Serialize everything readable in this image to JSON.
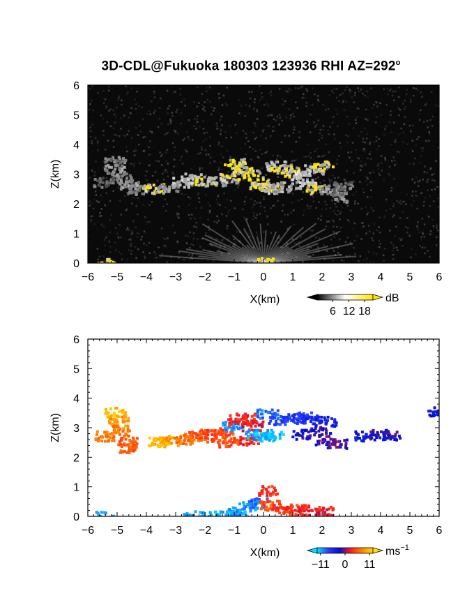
{
  "title": {
    "main": "3D-CDL@Fukuoka 180303 123936 RHI AZ=292",
    "deg": "o"
  },
  "chart_data": [
    {
      "type": "heatmap",
      "panel": "reflectivity",
      "xlabel": "X(km)",
      "ylabel": "Z(km)",
      "xlim": [
        -6,
        6
      ],
      "ylim": [
        0,
        6
      ],
      "xticks": [
        "−6",
        "−5",
        "−4",
        "−3",
        "−2",
        "−1",
        "0",
        "1",
        "2",
        "3",
        "4",
        "5",
        "6"
      ],
      "yticks": [
        "0",
        "1",
        "2",
        "3",
        "4",
        "5",
        "6"
      ],
      "background": "#0a0a0a",
      "colorbar": {
        "unit": "dB",
        "ticks": [
          "6",
          "12",
          "18"
        ],
        "range": [
          0,
          21
        ],
        "colors": [
          "#000000",
          "#ffffff",
          "#ffe600"
        ]
      },
      "features": [
        {
          "x": -5.1,
          "z": 3.45,
          "val": 9
        },
        {
          "x": -5.1,
          "z": 3.2,
          "val": 10
        },
        {
          "x": -4.9,
          "z": 2.9,
          "val": 9
        },
        {
          "x": -4.6,
          "z": 2.7,
          "val": 10
        },
        {
          "x": -4.3,
          "z": 2.5,
          "val": 8
        },
        {
          "x": -5.5,
          "z": 2.75,
          "val": 7
        },
        {
          "x": -3.8,
          "z": 2.55,
          "val": 20
        },
        {
          "x": -3.3,
          "z": 2.6,
          "val": 10
        },
        {
          "x": -2.8,
          "z": 2.75,
          "val": 12
        },
        {
          "x": -2.5,
          "z": 2.9,
          "val": 13
        },
        {
          "x": -2.0,
          "z": 2.8,
          "val": 20
        },
        {
          "x": -1.6,
          "z": 2.8,
          "val": 12
        },
        {
          "x": -1.2,
          "z": 2.9,
          "val": 20
        },
        {
          "x": -1.0,
          "z": 3.4,
          "val": 20
        },
        {
          "x": -0.7,
          "z": 3.25,
          "val": 20
        },
        {
          "x": -0.4,
          "z": 3.0,
          "val": 20
        },
        {
          "x": -0.2,
          "z": 2.7,
          "val": 20
        },
        {
          "x": 0.0,
          "z": 2.6,
          "val": 20
        },
        {
          "x": 0.3,
          "z": 2.55,
          "val": 20
        },
        {
          "x": 0.6,
          "z": 2.6,
          "val": 11
        },
        {
          "x": 0.4,
          "z": 3.3,
          "val": 12
        },
        {
          "x": 0.6,
          "z": 3.2,
          "val": 20
        },
        {
          "x": 0.9,
          "z": 3.1,
          "val": 20
        },
        {
          "x": 1.2,
          "z": 3.0,
          "val": 14
        },
        {
          "x": 1.4,
          "z": 2.7,
          "val": 13
        },
        {
          "x": 1.7,
          "z": 3.2,
          "val": 12
        },
        {
          "x": 2.0,
          "z": 3.3,
          "val": 20
        },
        {
          "x": 1.8,
          "z": 2.5,
          "val": 20
        },
        {
          "x": 2.2,
          "z": 2.5,
          "val": 10
        },
        {
          "x": 2.5,
          "z": 2.25,
          "val": 9
        },
        {
          "x": 2.7,
          "z": 2.6,
          "val": 8
        },
        {
          "x": 0.0,
          "z": 0.05,
          "val": 18
        },
        {
          "x": -5.4,
          "z": 0.02,
          "val": 20
        }
      ]
    },
    {
      "type": "heatmap",
      "panel": "doppler_velocity",
      "xlabel": "X(km)",
      "ylabel": "Z(km)",
      "xlim": [
        -6,
        6
      ],
      "ylim": [
        0,
        6
      ],
      "xticks": [
        "−6",
        "−5",
        "−4",
        "−3",
        "−2",
        "−1",
        "0",
        "1",
        "2",
        "3",
        "4",
        "5",
        "6"
      ],
      "yticks": [
        "0",
        "1",
        "2",
        "3",
        "4",
        "5",
        "6"
      ],
      "background": "#ffffff",
      "colorbar": {
        "unit": "ms",
        "unit_exp": "−1",
        "ticks": [
          "−11",
          "0",
          "11"
        ],
        "range": [
          -11,
          11
        ],
        "colors": [
          "#00e5ff",
          "#2a3cff",
          "#0010d0",
          "#ff1a1a",
          "#ff8000",
          "#ffe000"
        ]
      },
      "features": [
        {
          "x": -5.1,
          "z": 3.55,
          "val": 9
        },
        {
          "x": -5.0,
          "z": 3.25,
          "val": 8
        },
        {
          "x": -4.9,
          "z": 2.95,
          "val": 6
        },
        {
          "x": -4.7,
          "z": 2.6,
          "val": 5
        },
        {
          "x": -4.6,
          "z": 2.35,
          "val": 5
        },
        {
          "x": -5.5,
          "z": 2.75,
          "val": 6
        },
        {
          "x": -3.6,
          "z": 2.55,
          "val": 9
        },
        {
          "x": -3.2,
          "z": 2.6,
          "val": 8
        },
        {
          "x": -2.8,
          "z": 2.65,
          "val": 6
        },
        {
          "x": -2.4,
          "z": 2.75,
          "val": 5
        },
        {
          "x": -2.0,
          "z": 2.8,
          "val": 4
        },
        {
          "x": -1.7,
          "z": 2.7,
          "val": 4
        },
        {
          "x": -1.4,
          "z": 2.9,
          "val": 4
        },
        {
          "x": -1.2,
          "z": 2.55,
          "val": 4
        },
        {
          "x": -1.1,
          "z": 3.1,
          "val": -9
        },
        {
          "x": -0.9,
          "z": 3.3,
          "val": 2
        },
        {
          "x": -0.6,
          "z": 3.35,
          "val": 3
        },
        {
          "x": -0.4,
          "z": 3.1,
          "val": 2
        },
        {
          "x": -0.5,
          "z": 2.6,
          "val": 3
        },
        {
          "x": -0.3,
          "z": 2.8,
          "val": -9
        },
        {
          "x": 0.0,
          "z": 2.75,
          "val": -10
        },
        {
          "x": 0.3,
          "z": 2.8,
          "val": -10
        },
        {
          "x": 0.1,
          "z": 3.5,
          "val": -8
        },
        {
          "x": 0.5,
          "z": 3.3,
          "val": -7
        },
        {
          "x": 0.9,
          "z": 3.35,
          "val": -6
        },
        {
          "x": 1.3,
          "z": 3.4,
          "val": -6
        },
        {
          "x": 1.6,
          "z": 3.3,
          "val": -5
        },
        {
          "x": 1.3,
          "z": 2.8,
          "val": -2
        },
        {
          "x": 1.9,
          "z": 2.9,
          "val": -2
        },
        {
          "x": 2.1,
          "z": 2.6,
          "val": -1
        },
        {
          "x": 2.5,
          "z": 2.5,
          "val": -1
        },
        {
          "x": 2.1,
          "z": 3.25,
          "val": -4
        },
        {
          "x": 3.4,
          "z": 2.75,
          "val": -3
        },
        {
          "x": 3.9,
          "z": 2.8,
          "val": -2
        },
        {
          "x": 4.3,
          "z": 2.75,
          "val": -2
        },
        {
          "x": 5.95,
          "z": 3.6,
          "val": -3
        },
        {
          "x": -1.6,
          "z": 0.1,
          "val": -9
        },
        {
          "x": -1.0,
          "z": 0.2,
          "val": -9
        },
        {
          "x": -0.5,
          "z": 0.35,
          "val": -9
        },
        {
          "x": -0.2,
          "z": 0.5,
          "val": -8
        },
        {
          "x": 0.2,
          "z": 0.4,
          "val": 4
        },
        {
          "x": 0.6,
          "z": 0.3,
          "val": 3
        },
        {
          "x": 1.0,
          "z": 0.25,
          "val": 3
        },
        {
          "x": 1.5,
          "z": 0.25,
          "val": 2
        },
        {
          "x": 2.0,
          "z": 0.2,
          "val": 2
        },
        {
          "x": 0.1,
          "z": 0.9,
          "val": 3
        },
        {
          "x": -0.8,
          "z": 0.1,
          "val": -9
        },
        {
          "x": -5.5,
          "z": 0.02,
          "val": -9
        },
        {
          "x": -2.4,
          "z": 0.05,
          "val": -9
        }
      ]
    }
  ]
}
